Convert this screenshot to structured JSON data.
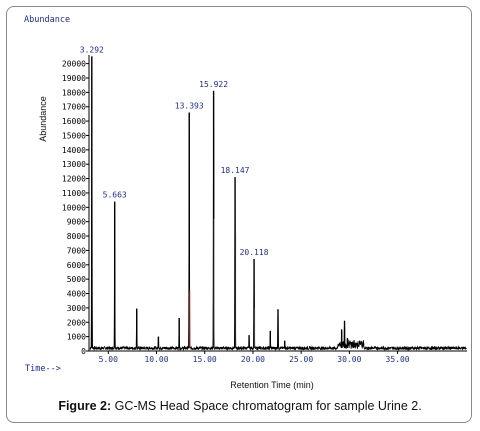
{
  "figure": {
    "label": "Figure 2:",
    "caption": "GC-MS Head Space chromatogram for sample Urine 2."
  },
  "chart_data": {
    "type": "line",
    "title": "",
    "corner_label": "Abundance",
    "ylabel": "Abundance",
    "xlabel": "Retention Time (min)",
    "time_label": "Time-->",
    "xlim": [
      3.0,
      42.2
    ],
    "ylim": [
      0,
      20600
    ],
    "x_ticks": [
      "5.00",
      "10.00",
      "15.00",
      "20.00",
      "25.00",
      "30.00",
      "35.00"
    ],
    "x_tick_values": [
      5,
      10,
      15,
      20,
      25,
      30,
      35
    ],
    "y_ticks": [
      0,
      1000,
      2000,
      3000,
      4000,
      5000,
      6000,
      7000,
      8000,
      9000,
      10000,
      11000,
      12000,
      13000,
      14000,
      15000,
      16000,
      17000,
      18000,
      19000,
      20000
    ],
    "grid": false,
    "baseline": 200,
    "peaks": [
      {
        "x": 3.292,
        "y": 20500,
        "label": "3.292"
      },
      {
        "x": 5.663,
        "y": 10400,
        "label": "5.663"
      },
      {
        "x": 7.95,
        "y": 2950,
        "label": ""
      },
      {
        "x": 10.2,
        "y": 1000,
        "label": ""
      },
      {
        "x": 12.35,
        "y": 2300,
        "label": ""
      },
      {
        "x": 13.393,
        "y": 16600,
        "label": "13.393"
      },
      {
        "x": 15.922,
        "y": 18100,
        "label": "15.922"
      },
      {
        "x": 18.147,
        "y": 12100,
        "label": "18.147"
      },
      {
        "x": 19.6,
        "y": 1100,
        "label": ""
      },
      {
        "x": 20.118,
        "y": 6400,
        "label": "20.118"
      },
      {
        "x": 21.8,
        "y": 1400,
        "label": ""
      },
      {
        "x": 22.6,
        "y": 2900,
        "label": ""
      },
      {
        "x": 23.3,
        "y": 700,
        "label": ""
      },
      {
        "x": 29.2,
        "y": 1500,
        "label": ""
      },
      {
        "x": 29.5,
        "y": 2100,
        "label": ""
      },
      {
        "x": 29.8,
        "y": 900,
        "label": ""
      },
      {
        "x": 30.4,
        "y": 600,
        "label": ""
      }
    ]
  }
}
